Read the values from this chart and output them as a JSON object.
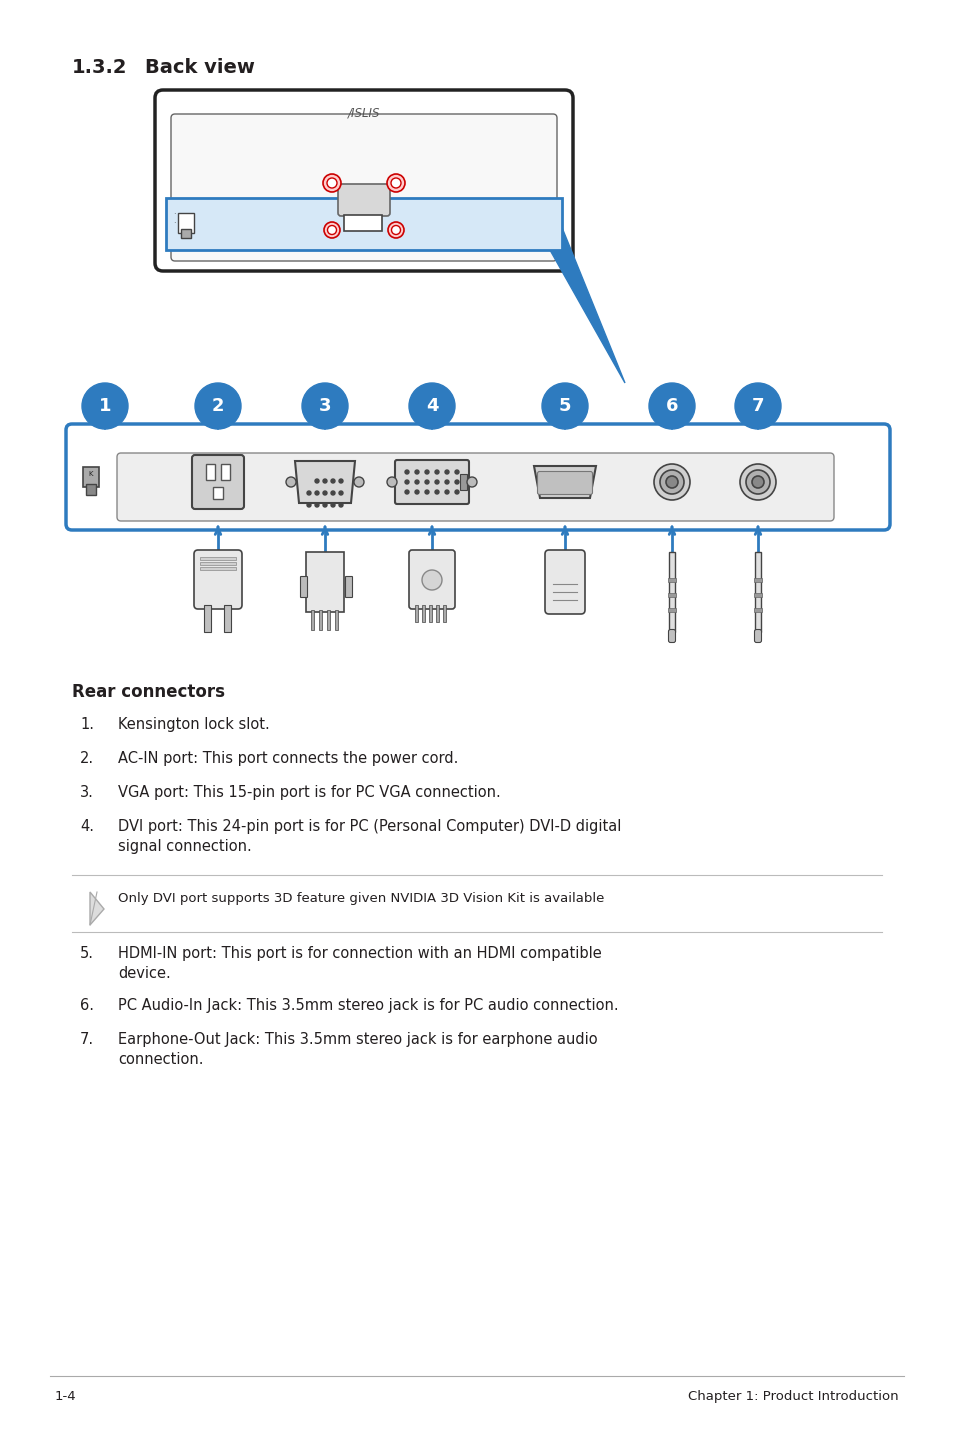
{
  "title_num": "1.3.2",
  "title_text": "Back view",
  "section_heading": "Rear connectors",
  "items": [
    {
      "num": "1",
      "text": "Kensington lock slot."
    },
    {
      "num": "2",
      "text": "AC-IN port: This port connects the power cord."
    },
    {
      "num": "3",
      "text": "VGA port: This 15-pin port is for PC VGA connection."
    },
    {
      "num": "4",
      "text": "DVI port: This 24-pin port is for PC (Personal Computer) DVI-D digital\nsignal connection."
    },
    {
      "num": "5",
      "text": "HDMI-IN port: This port is for connection with an HDMI compatible\ndevice."
    },
    {
      "num": "6",
      "text": "PC Audio-In Jack: This 3.5mm stereo jack is for PC audio connection."
    },
    {
      "num": "7",
      "text": "Earphone-Out Jack: This 3.5mm stereo jack is for earphone audio\nconnection."
    }
  ],
  "note_text": "Only DVI port supports 3D feature given NVIDIA 3D Vision Kit is available",
  "footer_left": "1-4",
  "footer_right": "Chapter 1: Product Introduction",
  "bg_color": "#ffffff",
  "text_color": "#231f20",
  "blue_color": "#2e7bbf",
  "blue_light": "#d6e8f7",
  "gray_dark": "#444444",
  "gray_med": "#888888",
  "gray_light": "#cccccc",
  "gray_border": "#999999",
  "title_fontsize": 14,
  "body_fontsize": 10.5,
  "heading_fontsize": 12
}
